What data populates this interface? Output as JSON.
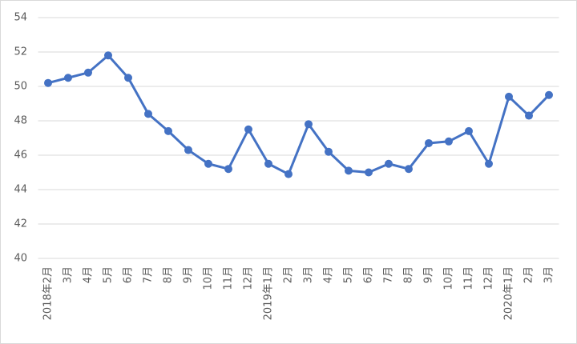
{
  "chart_data": {
    "type": "line",
    "categories": [
      "2018年2月",
      "3月",
      "4月",
      "5月",
      "6月",
      "7月",
      "8月",
      "9月",
      "10月",
      "11月",
      "12月",
      "2019年1月",
      "2月",
      "3月",
      "4月",
      "5月",
      "6月",
      "7月",
      "8月",
      "9月",
      "10月",
      "11月",
      "12月",
      "2020年1月",
      "2月",
      "3月"
    ],
    "values": [
      50.2,
      50.5,
      50.8,
      51.8,
      50.5,
      48.4,
      47.4,
      46.3,
      45.5,
      45.2,
      47.5,
      45.5,
      44.9,
      47.8,
      46.2,
      45.1,
      45.0,
      45.5,
      45.2,
      46.7,
      46.8,
      47.4,
      45.5,
      49.4,
      48.3,
      49.5
    ],
    "color": "#4472c4",
    "ylim": [
      40,
      54
    ],
    "yticks": [
      40,
      42,
      44,
      46,
      48,
      50,
      52,
      54
    ],
    "grid": true
  }
}
